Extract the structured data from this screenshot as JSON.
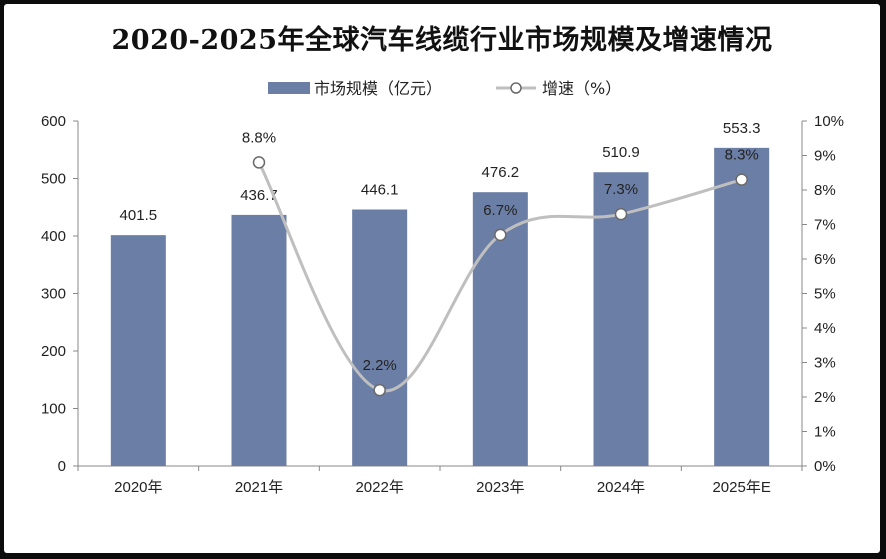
{
  "chart_data": {
    "type": "bar",
    "title": "2020-2025年全球汽车线缆行业市场规模及增速情况",
    "categories": [
      "2020年",
      "2021年",
      "2022年",
      "2023年",
      "2024年",
      "2025年E"
    ],
    "series": [
      {
        "name": "市场规模（亿元）",
        "type": "bar",
        "axis": "left",
        "values": [
          401.5,
          436.7,
          446.1,
          476.2,
          510.9,
          553.3
        ],
        "labels": [
          "401.5",
          "436.7",
          "446.1",
          "476.2",
          "510.9",
          "553.3"
        ],
        "color": "#6b7ea6"
      },
      {
        "name": "增速（%）",
        "type": "line",
        "axis": "right",
        "values": [
          null,
          8.8,
          2.2,
          6.7,
          7.3,
          8.3
        ],
        "labels": [
          "",
          "8.8%",
          "2.2%",
          "6.7%",
          "7.3%",
          "8.3%"
        ],
        "color": "#bfbfbf"
      }
    ],
    "y_left": {
      "range": [
        0,
        600
      ],
      "ticks": [
        0,
        100,
        200,
        300,
        400,
        500,
        600
      ],
      "tick_labels": [
        "0",
        "100",
        "200",
        "300",
        "400",
        "500",
        "600"
      ]
    },
    "y_right": {
      "range": [
        0,
        10
      ],
      "ticks": [
        0,
        1,
        2,
        3,
        4,
        5,
        6,
        7,
        8,
        9,
        10
      ],
      "tick_labels": [
        "0%",
        "1%",
        "2%",
        "3%",
        "4%",
        "5%",
        "6%",
        "7%",
        "8%",
        "9%",
        "10%"
      ]
    },
    "grid": false,
    "legend_position": "top-center"
  }
}
